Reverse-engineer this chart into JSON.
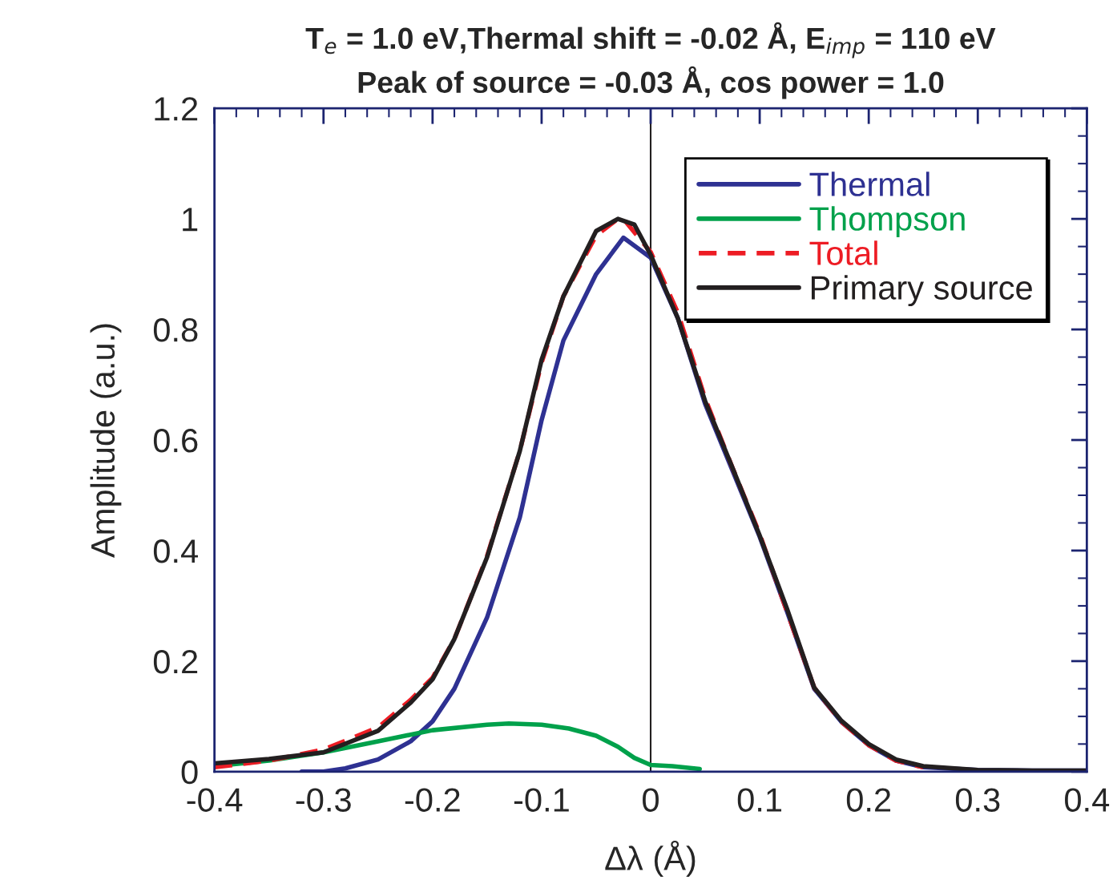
{
  "chart_data": {
    "type": "line",
    "title": "T$_{e}$ = 1.0 eV,Thermal shift = -0.02 Å, E$_{imp}$ = 110 eV\nPeak of source = -0.03 Å, cos power = 1.0",
    "xlabel": "Δλ (Å)",
    "ylabel": "Amplitude (a.u.)",
    "xlim": [
      -0.4,
      0.4
    ],
    "ylim": [
      0,
      1.2
    ],
    "xticks": [
      -0.4,
      -0.3,
      -0.2,
      -0.1,
      0,
      0.1,
      0.2,
      0.3,
      0.4
    ],
    "yticks": [
      0,
      0.2,
      0.4,
      0.6,
      0.8,
      1,
      1.2
    ],
    "grid": false,
    "legend": "top right",
    "line_style": "solid",
    "marker": "none",
    "ref_lines": [
      {
        "axis": "x",
        "value": 0,
        "color": "#231f20"
      }
    ],
    "series": [
      {
        "name": "Thermal",
        "color": "#2e3192",
        "x": [
          -0.32,
          -0.3,
          -0.28,
          -0.25,
          -0.22,
          -0.2,
          -0.18,
          -0.15,
          -0.12,
          -0.1,
          -0.08,
          -0.05,
          -0.025,
          0,
          0.025,
          0.05,
          0.075,
          0.1,
          0.125,
          0.15,
          0.175,
          0.2,
          0.225,
          0.25,
          0.3,
          0.35,
          0.4
        ],
        "values": [
          0,
          0,
          0.006,
          0.022,
          0.055,
          0.091,
          0.15,
          0.279,
          0.46,
          0.636,
          0.78,
          0.9,
          0.966,
          0.93,
          0.82,
          0.665,
          0.545,
          0.425,
          0.29,
          0.15,
          0.09,
          0.048,
          0.02,
          0.008,
          0.003,
          0.002,
          0.002
        ]
      },
      {
        "name": "Thompson",
        "color": "#00a14b",
        "x": [
          -0.4,
          -0.35,
          -0.3,
          -0.25,
          -0.2,
          -0.15,
          -0.13,
          -0.1,
          -0.075,
          -0.05,
          -0.03,
          -0.015,
          0,
          0.02,
          0.045
        ],
        "values": [
          0.01,
          0.02,
          0.035,
          0.055,
          0.075,
          0.085,
          0.087,
          0.085,
          0.078,
          0.065,
          0.045,
          0.025,
          0.012,
          0.01,
          0.005
        ]
      },
      {
        "name": "Total",
        "color": "#ed1c24",
        "line_style": "dashed",
        "x": [
          -0.4,
          -0.35,
          -0.3,
          -0.25,
          -0.22,
          -0.2,
          -0.18,
          -0.15,
          -0.12,
          -0.1,
          -0.08,
          -0.05,
          -0.03,
          -0.025,
          0,
          0.025,
          0.05,
          0.075,
          0.1,
          0.125,
          0.15,
          0.175,
          0.2,
          0.225,
          0.25
        ],
        "values": [
          0.008,
          0.02,
          0.04,
          0.08,
          0.13,
          0.17,
          0.24,
          0.39,
          0.58,
          0.74,
          0.86,
          0.97,
          1.0,
          1.0,
          0.94,
          0.83,
          0.675,
          0.55,
          0.43,
          0.29,
          0.152,
          0.09,
          0.048,
          0.02,
          0.008
        ]
      },
      {
        "name": "Primary source",
        "color": "#231f20",
        "x": [
          -0.4,
          -0.35,
          -0.3,
          -0.25,
          -0.22,
          -0.2,
          -0.18,
          -0.15,
          -0.12,
          -0.1,
          -0.08,
          -0.05,
          -0.03,
          -0.015,
          0,
          0.025,
          0.05,
          0.075,
          0.1,
          0.125,
          0.15,
          0.175,
          0.2,
          0.225,
          0.25,
          0.3,
          0.35,
          0.4
        ],
        "values": [
          0.015,
          0.023,
          0.035,
          0.074,
          0.125,
          0.167,
          0.24,
          0.388,
          0.58,
          0.745,
          0.86,
          0.978,
          1.0,
          0.99,
          0.935,
          0.82,
          0.67,
          0.55,
          0.427,
          0.295,
          0.152,
          0.092,
          0.05,
          0.022,
          0.01,
          0.003,
          0.002,
          0.002
        ]
      }
    ]
  }
}
